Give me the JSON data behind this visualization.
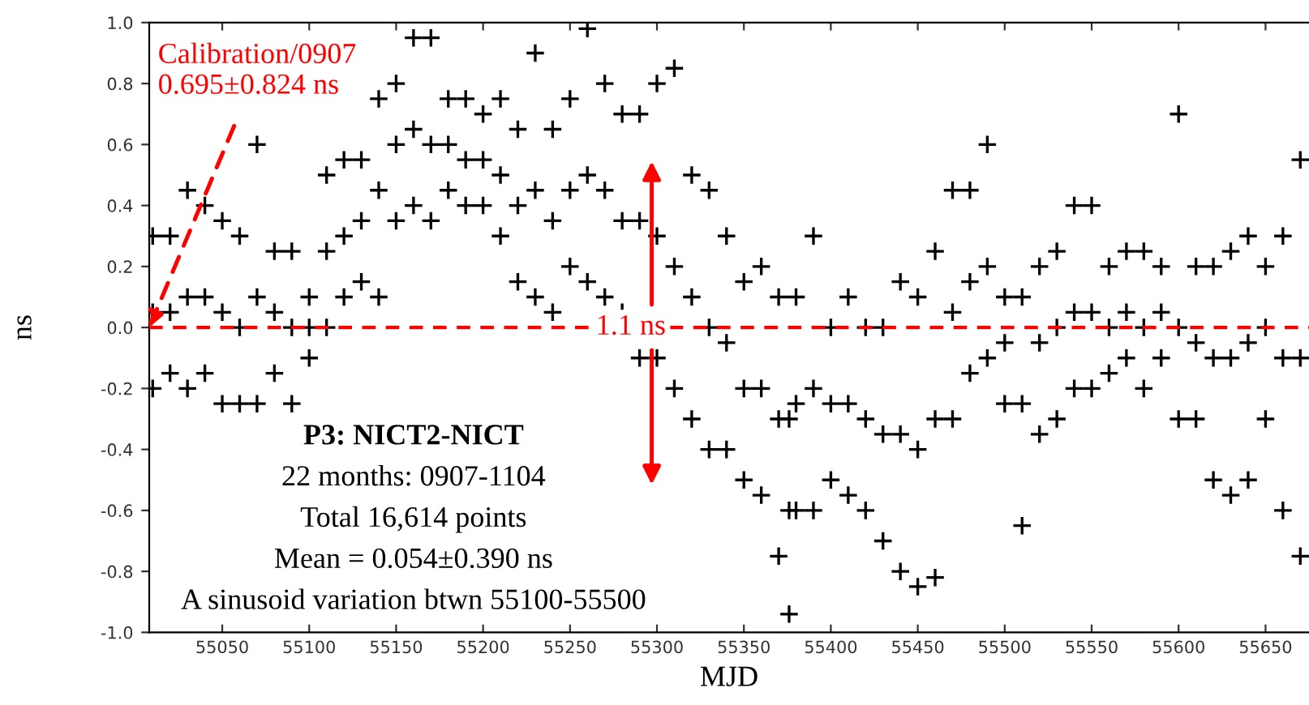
{
  "chart_data": {
    "type": "scatter",
    "xlabel": "MJD",
    "ylabel": "ns",
    "xlim": [
      55008,
      55675
    ],
    "ylim": [
      -1.0,
      1.0
    ],
    "xticks": [
      55050,
      55100,
      55150,
      55200,
      55250,
      55300,
      55350,
      55400,
      55450,
      55500,
      55550,
      55600,
      55650
    ],
    "yticks": [
      {
        "value": -1,
        "label": "-1.0"
      },
      -0.8,
      -0.6,
      -0.4,
      -0.2,
      {
        "value": 0,
        "label": "0.0"
      },
      0.2,
      0.4,
      0.6,
      0.8,
      {
        "value": 1,
        "label": "1.0"
      }
    ],
    "marker": "cross",
    "grid": false,
    "series": [
      {
        "color": "#000000",
        "x": [
          55010,
          55010,
          55010,
          55020,
          55020,
          55020,
          55030,
          55030,
          55030,
          55040,
          55040,
          55040,
          55050,
          55050,
          55050,
          55060,
          55060,
          55060,
          55070,
          55070,
          55070,
          55080,
          55080,
          55080,
          55090,
          55090,
          55090,
          55100,
          55100,
          55100,
          55110,
          55110,
          55110,
          55120,
          55120,
          55120,
          55130,
          55130,
          55130,
          55140,
          55140,
          55140,
          55150,
          55150,
          55150,
          55160,
          55160,
          55160,
          55170,
          55170,
          55170,
          55180,
          55180,
          55180,
          55190,
          55190,
          55190,
          55200,
          55200,
          55200,
          55210,
          55210,
          55210,
          55220,
          55220,
          55220,
          55230,
          55230,
          55230,
          55240,
          55240,
          55240,
          55250,
          55250,
          55250,
          55260,
          55260,
          55260,
          55270,
          55270,
          55270,
          55280,
          55280,
          55280,
          55290,
          55290,
          55290,
          55300,
          55300,
          55300,
          55310,
          55310,
          55310,
          55320,
          55320,
          55320,
          55330,
          55330,
          55330,
          55340,
          55340,
          55340,
          55350,
          55350,
          55350,
          55360,
          55360,
          55360,
          55370,
          55370,
          55370,
          55376,
          55376,
          55376,
          55380,
          55380,
          55380,
          55390,
          55390,
          55390,
          55400,
          55400,
          55400,
          55410,
          55410,
          55410,
          55420,
          55420,
          55420,
          55430,
          55430,
          55430,
          55440,
          55440,
          55440,
          55450,
          55450,
          55450,
          55460,
          55460,
          55460,
          55470,
          55470,
          55470,
          55480,
          55480,
          55480,
          55490,
          55490,
          55490,
          55500,
          55500,
          55500,
          55510,
          55510,
          55510,
          55520,
          55520,
          55520,
          55530,
          55530,
          55530,
          55540,
          55540,
          55540,
          55550,
          55550,
          55550,
          55560,
          55560,
          55560,
          55570,
          55570,
          55570,
          55580,
          55580,
          55580,
          55590,
          55590,
          55590,
          55600,
          55600,
          55600,
          55610,
          55610,
          55610,
          55620,
          55620,
          55620,
          55630,
          55630,
          55630,
          55640,
          55640,
          55640,
          55650,
          55650,
          55650,
          55660,
          55660,
          55660,
          55670,
          55670,
          55670
        ],
        "values": [
          -0.2,
          0.05,
          0.3,
          -0.15,
          0.05,
          0.3,
          -0.2,
          0.1,
          0.45,
          -0.15,
          0.1,
          0.4,
          -0.25,
          0.05,
          0.35,
          -0.25,
          0.0,
          0.3,
          -0.25,
          0.1,
          0.6,
          -0.15,
          0.05,
          0.25,
          -0.25,
          0.0,
          0.25,
          -0.1,
          0.0,
          0.1,
          0.0,
          0.25,
          0.5,
          0.1,
          0.3,
          0.55,
          0.15,
          0.35,
          0.55,
          0.1,
          0.45,
          0.75,
          0.35,
          0.6,
          0.8,
          0.4,
          0.65,
          0.95,
          0.35,
          0.6,
          0.95,
          0.45,
          0.6,
          0.75,
          0.4,
          0.55,
          0.75,
          0.4,
          0.55,
          0.7,
          0.3,
          0.5,
          0.75,
          0.15,
          0.4,
          0.65,
          0.1,
          0.45,
          0.9,
          0.05,
          0.35,
          0.65,
          0.2,
          0.45,
          0.75,
          0.15,
          0.5,
          0.98,
          0.1,
          0.45,
          0.8,
          0.05,
          0.35,
          0.7,
          -0.1,
          0.35,
          0.7,
          -0.1,
          0.3,
          0.8,
          -0.2,
          0.2,
          0.85,
          -0.3,
          0.1,
          0.5,
          -0.4,
          0.0,
          0.45,
          -0.4,
          -0.05,
          0.3,
          -0.5,
          -0.2,
          0.15,
          -0.55,
          -0.2,
          0.2,
          -0.75,
          -0.3,
          0.1,
          -0.94,
          -0.6,
          -0.3,
          -0.6,
          -0.25,
          0.1,
          -0.6,
          -0.2,
          0.3,
          -0.5,
          -0.25,
          0.0,
          -0.55,
          -0.25,
          0.1,
          -0.6,
          -0.3,
          0.0,
          -0.7,
          -0.35,
          0.0,
          -0.8,
          -0.35,
          0.15,
          -0.85,
          -0.4,
          0.1,
          -0.82,
          -0.3,
          0.25,
          -0.3,
          0.05,
          0.45,
          -0.15,
          0.15,
          0.45,
          -0.1,
          0.2,
          0.6,
          -0.25,
          -0.05,
          0.1,
          -0.65,
          -0.25,
          0.1,
          -0.35,
          -0.05,
          0.2,
          -0.3,
          0.0,
          0.25,
          -0.2,
          0.05,
          0.4,
          -0.2,
          0.05,
          0.4,
          -0.15,
          0.0,
          0.2,
          -0.1,
          0.05,
          0.25,
          -0.2,
          0.0,
          0.25,
          -0.1,
          0.05,
          0.2,
          -0.3,
          0.0,
          0.7,
          -0.3,
          -0.05,
          0.2,
          -0.5,
          -0.1,
          0.2,
          -0.55,
          -0.1,
          0.25,
          -0.5,
          -0.05,
          0.3,
          -0.3,
          0.0,
          0.2,
          -0.6,
          -0.1,
          0.3,
          -0.75,
          -0.1,
          0.55
        ]
      }
    ],
    "ref_lines": [
      {
        "axis": "y",
        "value": 0.0,
        "color": "#ff0000",
        "line_style": "dashed"
      }
    ],
    "annotations": [
      {
        "text": "Calibration/0907\n0.695±0.824 ns",
        "x": 55008,
        "y": 0.0
      },
      {
        "text": "1.1 ns",
        "x": 55285,
        "y": 0.0
      },
      "P3: NICT2-NICT",
      "22 months: 0907-1104",
      "Total 16,614 points",
      "Mean = 0.054±0.390 ns",
      "A sinusoid variation btwn 55100-55500"
    ]
  }
}
